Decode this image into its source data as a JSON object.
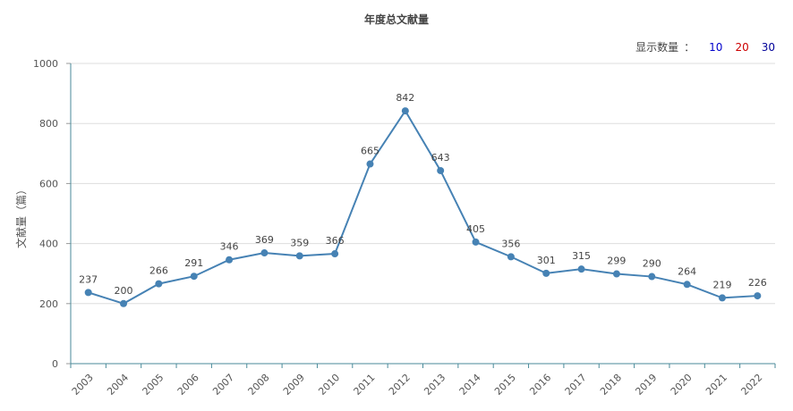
{
  "header": {
    "title": "年度总文献量",
    "display_count_label": "显示数量",
    "separator": "：",
    "options": [
      {
        "label": "10",
        "color": "#0000cc"
      },
      {
        "label": "20",
        "color": "#cc0000"
      },
      {
        "label": "30",
        "color": "#000099"
      }
    ]
  },
  "chart_data": {
    "type": "line",
    "title": "年度总文献量",
    "ylabel": "文献量（篇）",
    "xlabel": "",
    "ylim": [
      0,
      1000
    ],
    "yticks": [
      0,
      200,
      400,
      600,
      800,
      1000
    ],
    "categories": [
      "2003",
      "2004",
      "2005",
      "2006",
      "2007",
      "2008",
      "2009",
      "2010",
      "2011",
      "2012",
      "2013",
      "2014",
      "2015",
      "2016",
      "2017",
      "2018",
      "2019",
      "2020",
      "2021",
      "2022"
    ],
    "series": [
      {
        "values": [
          237,
          200,
          266,
          291,
          346,
          369,
          359,
          366,
          665,
          842,
          643,
          405,
          356,
          301,
          315,
          299,
          290,
          264,
          219,
          226
        ],
        "color": "#4682b4"
      }
    ],
    "grid": true,
    "data_labels": true
  }
}
